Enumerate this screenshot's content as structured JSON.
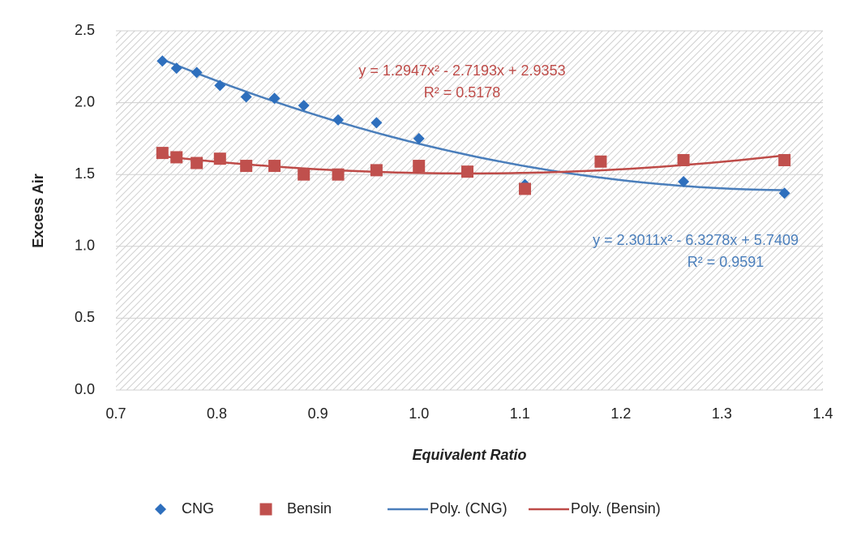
{
  "chart_data": {
    "type": "scatter",
    "x_label": "Equivalent Ratio",
    "y_label": "Excess Air",
    "xlim": [
      0.7,
      1.4
    ],
    "ylim": [
      0,
      2.5
    ],
    "xticks": [
      0.7,
      0.8,
      0.9,
      {
        "value": 1,
        "label": "1.0"
      },
      1.1,
      1.2,
      1.3,
      1.4
    ],
    "yticks": [
      {
        "value": 0,
        "label": "0.0"
      },
      0.5,
      {
        "value": 1,
        "label": "1.0"
      },
      1.5,
      {
        "value": 2,
        "label": "2.0"
      },
      2.5
    ],
    "grid": true,
    "legend": "bottom",
    "series": [
      {
        "name": "CNG",
        "color": "#2e6fbd",
        "marker": "diamond",
        "x": [
          0.746,
          0.76,
          0.78,
          0.803,
          0.829,
          0.857,
          0.886,
          0.92,
          0.958,
          1.0,
          1.105,
          1.262,
          1.362
        ],
        "values": [
          2.29,
          2.24,
          2.21,
          2.12,
          2.04,
          2.03,
          1.98,
          1.88,
          1.86,
          1.75,
          1.43,
          1.45,
          1.37
        ],
        "trendline": {
          "name": "Poly. (CNG)",
          "color": "#4a7ebb",
          "coefficients": [
            2.3011,
            -6.3278,
            5.7409
          ],
          "equation": "y = 2.3011x² - 6.3278x + 5.7409",
          "r2": "R² = 0.9591"
        }
      },
      {
        "name": "Bensin",
        "color": "#c0504d",
        "marker": "square",
        "x": [
          0.746,
          0.76,
          0.78,
          0.803,
          0.829,
          0.857,
          0.886,
          0.92,
          0.958,
          1.0,
          1.048,
          1.105,
          1.18,
          1.262,
          1.362
        ],
        "values": [
          1.65,
          1.62,
          1.58,
          1.61,
          1.56,
          1.56,
          1.5,
          1.5,
          1.53,
          1.56,
          1.52,
          1.4,
          1.59,
          1.6,
          1.6
        ],
        "trendline": {
          "name": "Poly. (Bensin)",
          "color": "#be4b48",
          "coefficients": [
            1.2947,
            -2.7193,
            2.9353
          ],
          "equation": "y = 1.2947x² - 2.7193x + 2.9353",
          "r2": "R² = 0.5178"
        }
      }
    ]
  }
}
